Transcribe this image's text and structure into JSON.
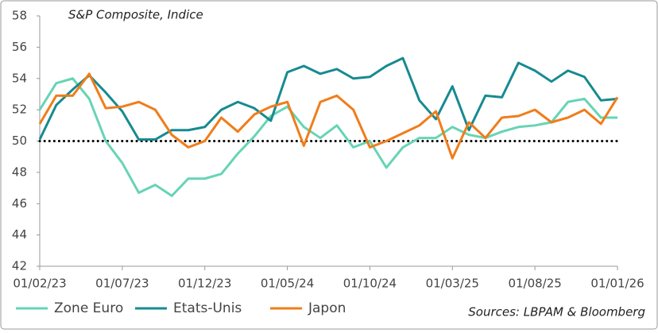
{
  "chart_data": {
    "type": "line",
    "title": "S&P Composite, Indice",
    "source": "Sources: LBPAM & Bloomberg",
    "categories": [
      "01/02/23",
      null,
      null,
      null,
      null,
      "01/07/23",
      null,
      null,
      null,
      null,
      "01/12/23",
      null,
      null,
      null,
      null,
      "01/05/24",
      null,
      null,
      null,
      null,
      "01/10/24",
      null,
      null,
      null,
      null,
      "01/03/25",
      null,
      null,
      null,
      null,
      "01/08/25",
      null,
      null,
      null,
      null,
      "01/01/26"
    ],
    "series": [
      {
        "name": "Zone Euro",
        "color": "#66d4b5",
        "values": [
          52.0,
          53.7,
          54.0,
          52.7,
          50.0,
          48.6,
          46.7,
          47.2,
          46.5,
          47.6,
          47.6,
          47.9,
          49.2,
          50.3,
          51.6,
          52.2,
          50.9,
          50.2,
          51.0,
          49.6,
          50.0,
          48.3,
          49.6,
          50.2,
          50.2,
          50.9,
          50.4,
          50.2,
          50.6,
          50.9,
          51.0,
          51.2,
          52.5,
          52.7,
          51.5,
          51.5
        ]
      },
      {
        "name": "Etats-Unis",
        "color": "#178a91",
        "values": [
          50.1,
          52.3,
          53.3,
          54.2,
          53.1,
          51.9,
          50.1,
          50.1,
          50.7,
          50.7,
          50.9,
          52.0,
          52.5,
          52.1,
          51.3,
          54.4,
          54.8,
          54.3,
          54.6,
          54.0,
          54.1,
          54.8,
          55.3,
          52.6,
          51.4,
          53.5,
          50.7,
          52.9,
          52.8,
          55.0,
          54.5,
          53.8,
          54.5,
          54.1,
          52.6,
          52.7
        ]
      },
      {
        "name": "Japon",
        "color": "#f07d1a",
        "values": [
          51.1,
          52.9,
          52.9,
          54.3,
          52.1,
          52.2,
          52.5,
          52.0,
          50.4,
          49.6,
          50.0,
          51.5,
          50.6,
          51.7,
          52.2,
          52.5,
          49.7,
          52.5,
          52.9,
          52.0,
          49.6,
          50.0,
          50.5,
          51.0,
          51.9,
          48.9,
          51.2,
          50.2,
          51.5,
          51.6,
          52.0,
          51.2,
          51.5,
          52.0,
          51.1,
          52.8
        ]
      }
    ],
    "ylim": [
      42,
      58
    ],
    "yticks": [
      42,
      44,
      46,
      48,
      50,
      52,
      54,
      56,
      58
    ],
    "reference_line": 50,
    "grid": false,
    "legend": "bottom-left"
  }
}
